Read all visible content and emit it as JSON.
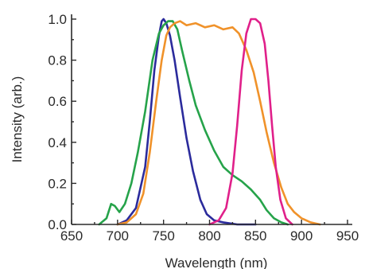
{
  "chart_data": {
    "type": "line",
    "title": "",
    "xlabel": "Wavelength (nm)",
    "ylabel": "Intensity (arb.)",
    "xlim": [
      650,
      950
    ],
    "ylim": [
      0,
      1.0
    ],
    "xticks": [
      650,
      700,
      750,
      800,
      850,
      900,
      950
    ],
    "yticks": [
      0.0,
      0.2,
      0.4,
      0.6,
      0.8,
      1.0
    ],
    "xtick_labels": [
      "650",
      "700",
      "750",
      "800",
      "850",
      "900",
      "950"
    ],
    "ytick_labels": [
      "0.0",
      "0.2",
      "0.4",
      "0.6",
      "0.8",
      "1.0"
    ],
    "grid": false,
    "legend": "none",
    "series": [
      {
        "color": "#2b2b9c",
        "x": [
          700,
          710,
          720,
          730,
          735,
          740,
          745,
          748,
          750,
          753,
          757,
          762,
          768,
          775,
          782,
          790,
          797,
          805,
          815,
          830,
          850
        ],
        "y": [
          0.0,
          0.02,
          0.08,
          0.28,
          0.5,
          0.75,
          0.92,
          0.99,
          1.0,
          0.98,
          0.92,
          0.8,
          0.62,
          0.42,
          0.26,
          0.12,
          0.05,
          0.02,
          0.01,
          0.0,
          0.0
        ]
      },
      {
        "color": "#26a34a",
        "x": [
          680,
          688,
          693,
          697,
          702,
          708,
          715,
          722,
          730,
          738,
          745,
          750,
          755,
          760,
          765,
          770,
          778,
          785,
          795,
          805,
          815,
          825,
          835,
          845,
          855,
          862,
          870,
          878,
          885
        ],
        "y": [
          0.0,
          0.03,
          0.1,
          0.09,
          0.06,
          0.1,
          0.2,
          0.35,
          0.55,
          0.8,
          0.93,
          0.97,
          0.99,
          0.99,
          0.95,
          0.85,
          0.7,
          0.58,
          0.46,
          0.36,
          0.28,
          0.24,
          0.21,
          0.17,
          0.12,
          0.07,
          0.03,
          0.01,
          0.0
        ]
      },
      {
        "color": "#f0922a",
        "x": [
          700,
          710,
          720,
          728,
          735,
          742,
          748,
          753,
          757,
          762,
          768,
          775,
          785,
          795,
          805,
          815,
          825,
          832,
          840,
          848,
          855,
          862,
          870,
          878,
          885,
          892,
          900,
          910,
          920
        ],
        "y": [
          0.0,
          0.01,
          0.05,
          0.15,
          0.35,
          0.6,
          0.8,
          0.92,
          0.96,
          0.98,
          0.99,
          0.97,
          0.98,
          0.96,
          0.97,
          0.95,
          0.96,
          0.93,
          0.85,
          0.74,
          0.6,
          0.45,
          0.3,
          0.18,
          0.1,
          0.06,
          0.03,
          0.01,
          0.0
        ]
      },
      {
        "color": "#e0208a",
        "x": [
          800,
          810,
          818,
          825,
          830,
          835,
          840,
          845,
          850,
          855,
          860,
          864,
          868,
          872,
          877,
          883,
          890
        ],
        "y": [
          0.0,
          0.02,
          0.08,
          0.25,
          0.48,
          0.75,
          0.93,
          1.0,
          1.0,
          0.98,
          0.88,
          0.7,
          0.48,
          0.28,
          0.12,
          0.03,
          0.0
        ]
      }
    ]
  }
}
